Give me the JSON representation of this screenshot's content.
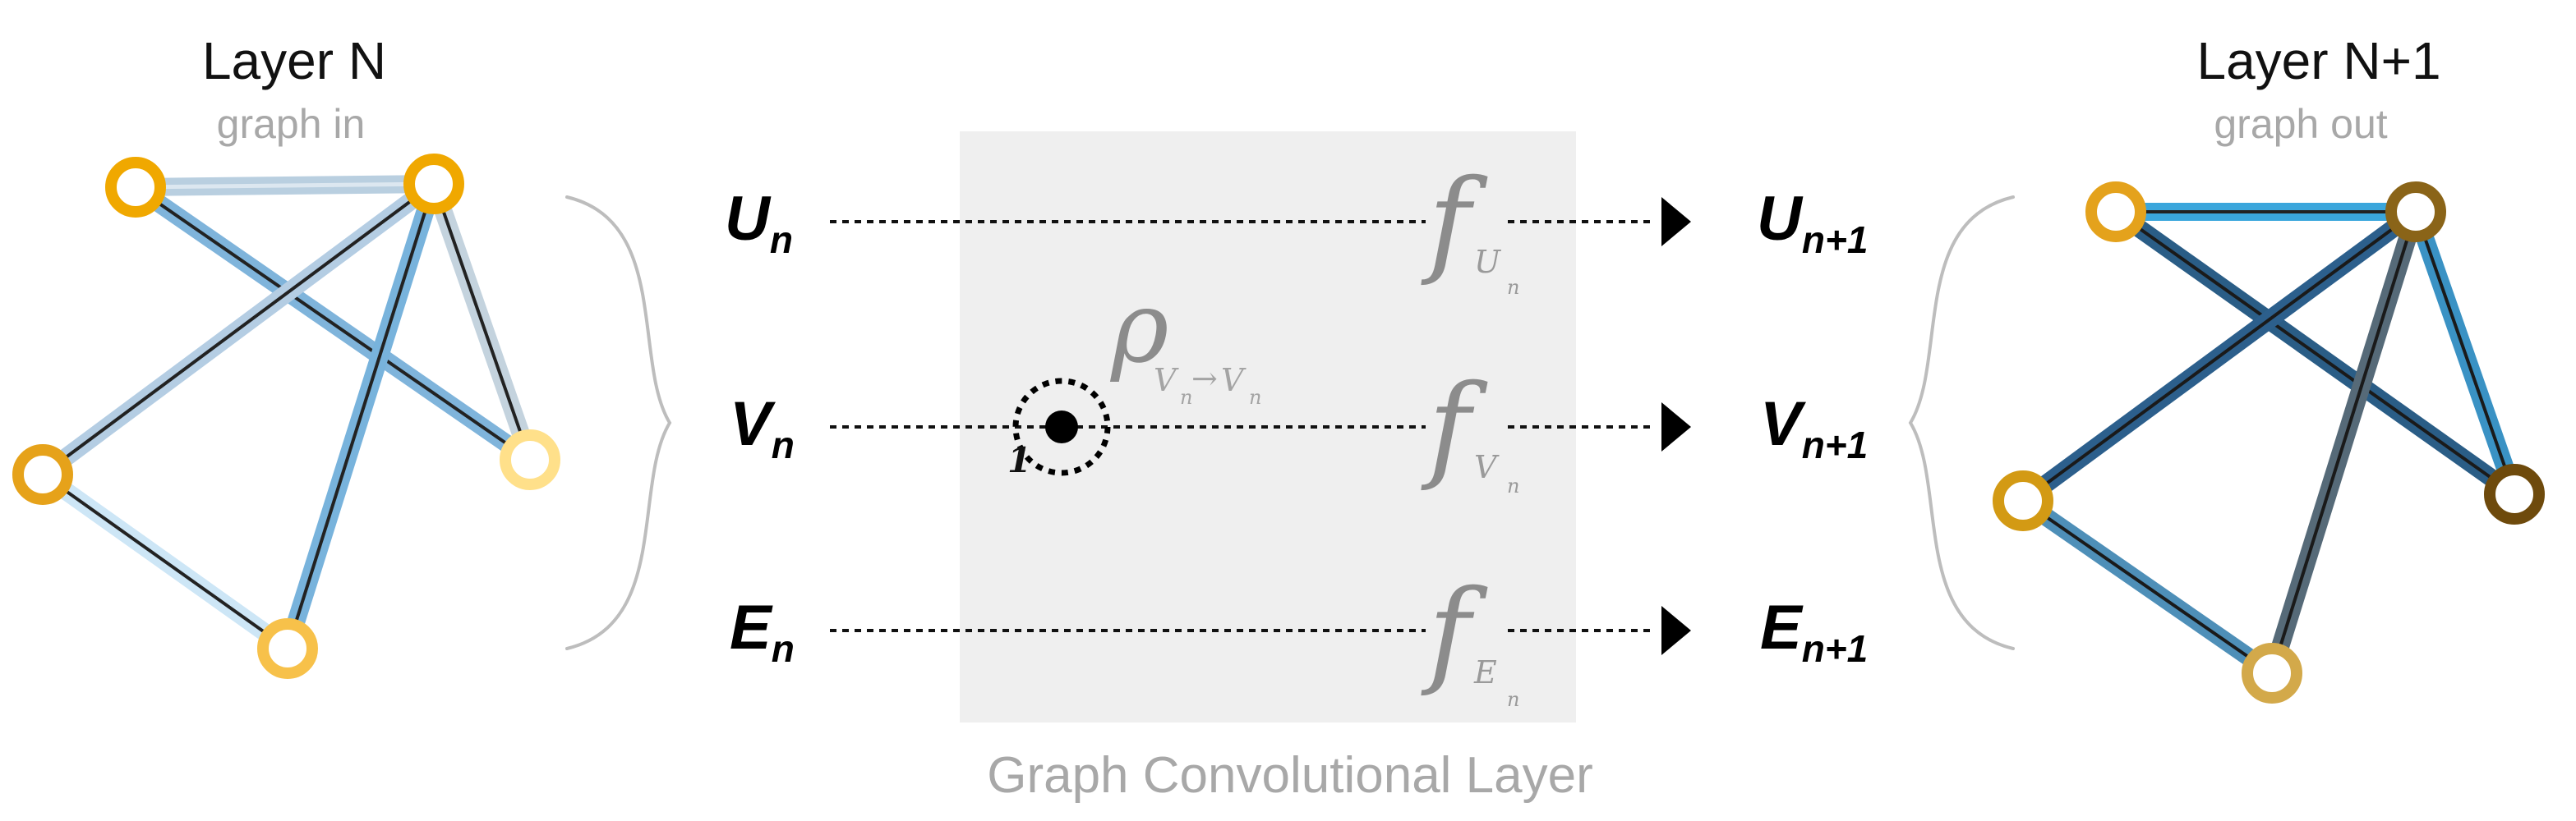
{
  "left_graph": {
    "title": "Layer N",
    "subtitle": "graph in"
  },
  "right_graph": {
    "title": "Layer N+1",
    "subtitle": "graph out"
  },
  "inputs": [
    {
      "symbol": "U",
      "sub": "n"
    },
    {
      "symbol": "V",
      "sub": "n"
    },
    {
      "symbol": "E",
      "sub": "n"
    }
  ],
  "outputs": [
    {
      "symbol": "U",
      "sub": "n+1"
    },
    {
      "symbol": "V",
      "sub": "n+1"
    },
    {
      "symbol": "E",
      "sub": "n+1"
    }
  ],
  "functions": [
    {
      "symbol": "f",
      "sub": "U",
      "subsub": "n"
    },
    {
      "symbol": "f",
      "sub": "V",
      "subsub": "n"
    },
    {
      "symbol": "f",
      "sub": "E",
      "subsub": "n"
    }
  ],
  "aggregator": {
    "symbol": "ρ",
    "sub_from": "V",
    "sub_from_sub": "n",
    "arrow": "→",
    "sub_to": "V",
    "sub_to_sub": "n",
    "count": "1"
  },
  "layer": {
    "label": "Graph Convolutional Layer"
  },
  "colors": {
    "box_fill": "#efefef",
    "brace": "#bdbdbd",
    "gold": "#f2a900",
    "dark_gold": "#6e4a0c",
    "edge_light": "#9cc8e8",
    "edge_dark": "#2c5f8c"
  }
}
